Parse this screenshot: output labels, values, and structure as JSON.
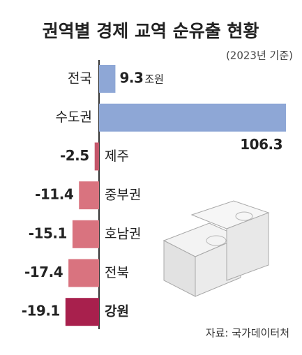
{
  "chart_data": {
    "type": "bar",
    "orientation": "horizontal",
    "title": "권역별 경제 교역 순유출 현황",
    "subtitle": "(2023년 기준)",
    "unit": "조원",
    "source": "자료: 국가데이터처",
    "categories": [
      "전국",
      "수도권",
      "제주",
      "중부권",
      "호남권",
      "전북",
      "강원"
    ],
    "values": [
      9.3,
      106.3,
      -2.5,
      -11.4,
      -15.1,
      -17.4,
      -19.1
    ],
    "colors": [
      "#8ea7d6",
      "#8ea7d6",
      "#c4566a",
      "#d9737f",
      "#d9737f",
      "#d9737f",
      "#a8204d"
    ]
  }
}
